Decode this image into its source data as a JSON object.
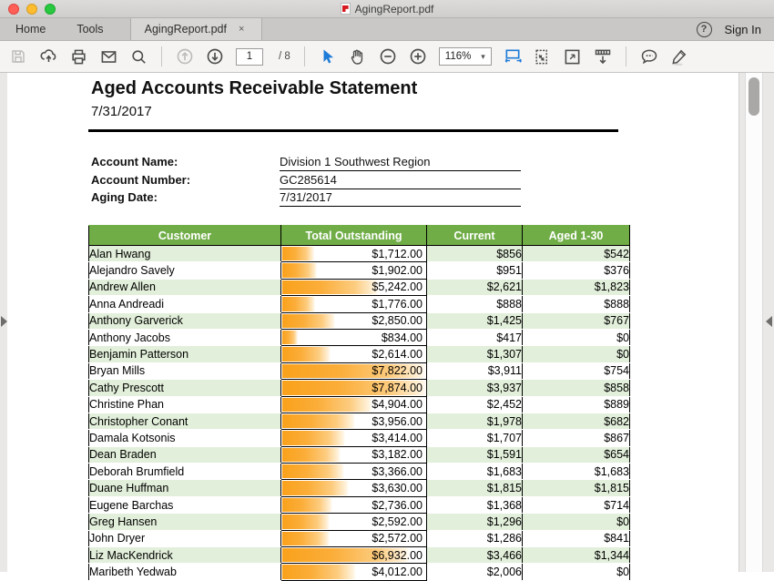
{
  "window": {
    "title": "AgingReport.pdf"
  },
  "tabbar": {
    "home": "Home",
    "tools": "Tools",
    "document_tab": "AgingReport.pdf",
    "close_glyph": "×",
    "help_glyph": "?",
    "sign_in": "Sign In"
  },
  "toolbar": {
    "page_current": "1",
    "page_total": "/ 8",
    "zoom_level": "116%",
    "zoom_caret_glyph": "▾"
  },
  "document": {
    "title": "Aged Accounts Receivable Statement",
    "date": "7/31/2017",
    "fields": [
      {
        "label": "Account Name:",
        "value": "Division 1 Southwest Region"
      },
      {
        "label": "Account Number:",
        "value": "GC285614"
      },
      {
        "label": "Aging Date:",
        "value": "7/31/2017"
      }
    ],
    "table": {
      "columns": [
        "Customer",
        "Total Outstanding",
        "Current",
        "Aged 1-30"
      ],
      "rows": [
        {
          "customer": "Alan Hwang",
          "total": "$1,712.00",
          "current": "$856",
          "aged": "$542"
        },
        {
          "customer": "Alejandro Savely",
          "total": "$1,902.00",
          "current": "$951",
          "aged": "$376"
        },
        {
          "customer": "Andrew Allen",
          "total": "$5,242.00",
          "current": "$2,621",
          "aged": "$1,823"
        },
        {
          "customer": "Anna Andreadi",
          "total": "$1,776.00",
          "current": "$888",
          "aged": "$888"
        },
        {
          "customer": "Anthony Garverick",
          "total": "$2,850.00",
          "current": "$1,425",
          "aged": "$767"
        },
        {
          "customer": "Anthony Jacobs",
          "total": "$834.00",
          "current": "$417",
          "aged": "$0"
        },
        {
          "customer": "Benjamin Patterson",
          "total": "$2,614.00",
          "current": "$1,307",
          "aged": "$0"
        },
        {
          "customer": "Bryan Mills",
          "total": "$7,822.00",
          "current": "$3,911",
          "aged": "$754"
        },
        {
          "customer": "Cathy Prescott",
          "total": "$7,874.00",
          "current": "$3,937",
          "aged": "$858"
        },
        {
          "customer": "Christine Phan",
          "total": "$4,904.00",
          "current": "$2,452",
          "aged": "$889"
        },
        {
          "customer": "Christopher Conant",
          "total": "$3,956.00",
          "current": "$1,978",
          "aged": "$682"
        },
        {
          "customer": "Damala Kotsonis",
          "total": "$3,414.00",
          "current": "$1,707",
          "aged": "$867"
        },
        {
          "customer": "Dean Braden",
          "total": "$3,182.00",
          "current": "$1,591",
          "aged": "$654"
        },
        {
          "customer": "Deborah Brumfield",
          "total": "$3,366.00",
          "current": "$1,683",
          "aged": "$1,683"
        },
        {
          "customer": "Duane Huffman",
          "total": "$3,630.00",
          "current": "$1,815",
          "aged": "$1,815"
        },
        {
          "customer": "Eugene Barchas",
          "total": "$2,736.00",
          "current": "$1,368",
          "aged": "$714"
        },
        {
          "customer": "Greg Hansen",
          "total": "$2,592.00",
          "current": "$1,296",
          "aged": "$0"
        },
        {
          "customer": "John Dryer",
          "total": "$2,572.00",
          "current": "$1,286",
          "aged": "$841"
        },
        {
          "customer": "Liz MacKendrick",
          "total": "$6,932.00",
          "current": "$3,466",
          "aged": "$1,344"
        },
        {
          "customer": "Maribeth Yedwab",
          "total": "$4,012.00",
          "current": "$2,006",
          "aged": "$0"
        }
      ]
    },
    "colors": {
      "header_green": "#70AD47",
      "row_green": "#E2EFDA",
      "bar_orange": "#F9A11B",
      "accent_blue": "#1E7BD7"
    }
  }
}
